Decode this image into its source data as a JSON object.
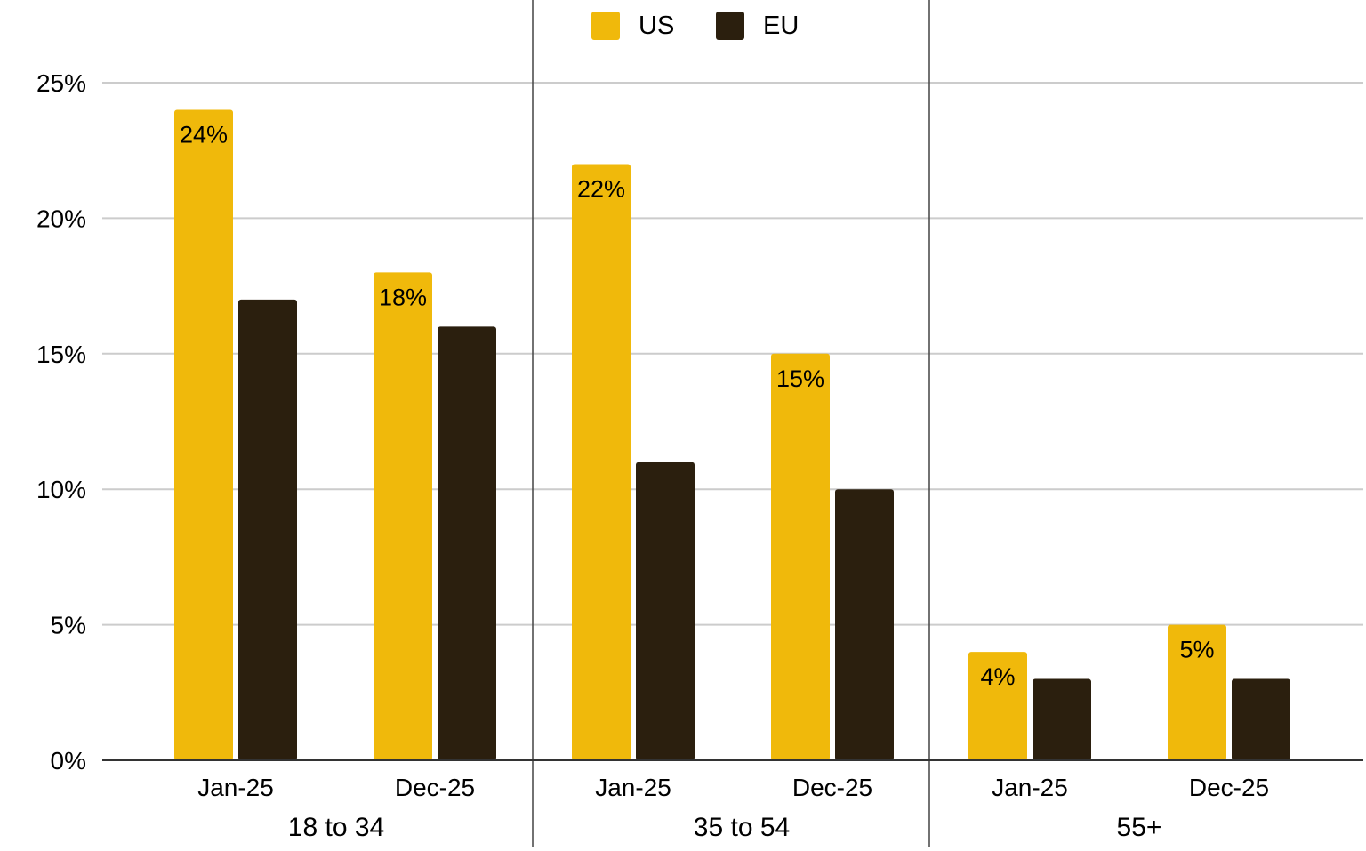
{
  "chart_data": {
    "type": "bar",
    "title": "",
    "xlabel": "",
    "ylabel": "",
    "ylim": [
      0,
      25
    ],
    "y_ticks": [
      0,
      5,
      10,
      15,
      20,
      25
    ],
    "y_tick_labels": [
      "0%",
      "5%",
      "10%",
      "15%",
      "20%",
      "25%"
    ],
    "grid": true,
    "legend_position": "top",
    "groups": [
      {
        "label": "18 to 34",
        "categories": [
          "Jan-25",
          "Dec-25"
        ]
      },
      {
        "label": "35 to 54",
        "categories": [
          "Jan-25",
          "Dec-25"
        ]
      },
      {
        "label": "55+",
        "categories": [
          "Jan-25",
          "Dec-25"
        ]
      }
    ],
    "series": [
      {
        "name": "US",
        "color": "#F0B90B",
        "values": [
          24,
          18,
          22,
          15,
          4,
          5
        ],
        "data_labels": [
          "24%",
          "18%",
          "22%",
          "15%",
          "4%",
          "5%"
        ]
      },
      {
        "name": "EU",
        "color": "#2B1F0E",
        "values": [
          17,
          16,
          11,
          10,
          3,
          3
        ]
      }
    ]
  }
}
